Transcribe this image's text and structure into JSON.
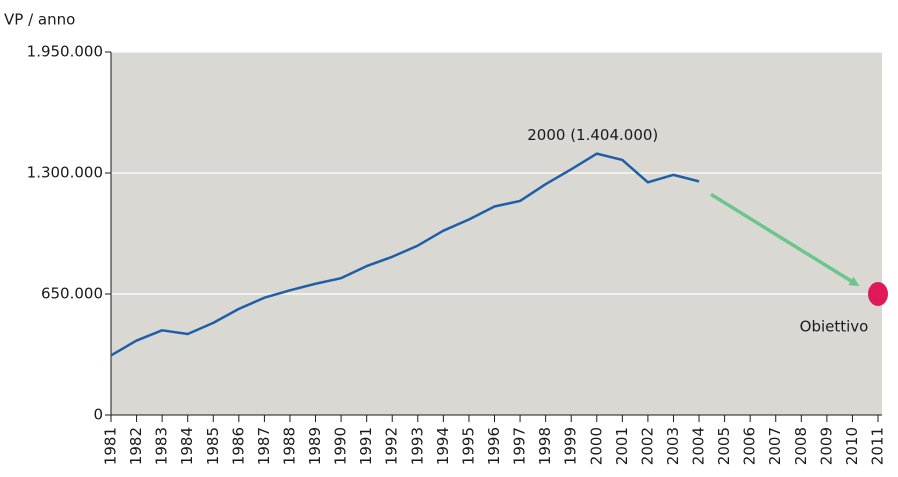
{
  "chart_data": {
    "type": "line",
    "y_label": "VP / anno",
    "categories": [
      "1981",
      "1982",
      "1983",
      "1984",
      "1985",
      "1986",
      "1987",
      "1988",
      "1989",
      "1990",
      "1991",
      "1992",
      "1993",
      "1994",
      "1995",
      "1996",
      "1997",
      "1998",
      "1999",
      "2000",
      "2001",
      "2002",
      "2003",
      "2004",
      "2005",
      "2006",
      "2007",
      "2008",
      "2009",
      "2010",
      "2011"
    ],
    "values": [
      320000,
      400000,
      455000,
      435000,
      495000,
      570000,
      630000,
      670000,
      705000,
      735000,
      800000,
      850000,
      910000,
      990000,
      1050000,
      1120000,
      1150000,
      1240000,
      1320000,
      1404000,
      1370000,
      1250000,
      1290000,
      1255000,
      null,
      null,
      null,
      null,
      null,
      null,
      null
    ],
    "color": "#1f5fa8",
    "ylim": [
      0,
      1950000
    ],
    "yticks": [
      0,
      {
        "value": 650000,
        "label": "650.000"
      },
      {
        "value": 1300000,
        "label": "1.300.000"
      },
      {
        "value": 1950000,
        "label": "1.950.000"
      }
    ],
    "grid": true,
    "annotation": "2000 (1.404.000)",
    "target": {
      "label": "Obiettivo",
      "category": "2011",
      "value": 650000,
      "color": "#e0195a"
    }
  }
}
